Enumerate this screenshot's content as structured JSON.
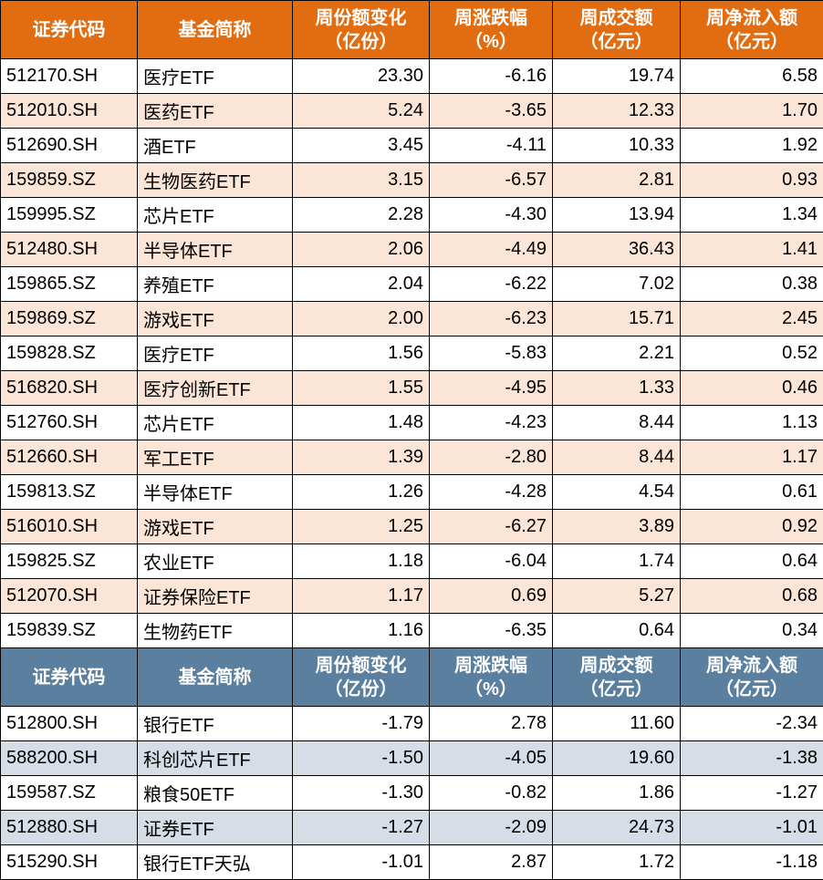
{
  "colors": {
    "header_orange": "#e26c10",
    "header_blue": "#5b7f9e",
    "stripe_orange": "#fbe5d6",
    "stripe_blue": "#d6dde6",
    "border": "#000000",
    "text_dark": "#000000",
    "text_header": "#ffffff"
  },
  "table1": {
    "columns": [
      {
        "key": "code",
        "label": "证券代码",
        "align": "left"
      },
      {
        "key": "name",
        "label": "基金简称",
        "align": "left"
      },
      {
        "key": "share",
        "label": "周份额变化<br>（亿份）",
        "align": "right"
      },
      {
        "key": "pct",
        "label": "周涨跌幅<br>（%）",
        "align": "right"
      },
      {
        "key": "vol",
        "label": "周成交额<br>（亿元）",
        "align": "right"
      },
      {
        "key": "flow",
        "label": "周净流入额<br>（亿元）",
        "align": "right"
      }
    ],
    "rows": [
      {
        "code": "512170.SH",
        "name": "医疗ETF",
        "share": "23.30",
        "pct": "-6.16",
        "vol": "19.74",
        "flow": "6.58"
      },
      {
        "code": "512010.SH",
        "name": "医药ETF",
        "share": "5.24",
        "pct": "-3.65",
        "vol": "12.33",
        "flow": "1.70"
      },
      {
        "code": "512690.SH",
        "name": "酒ETF",
        "share": "3.45",
        "pct": "-4.11",
        "vol": "10.33",
        "flow": "1.92"
      },
      {
        "code": "159859.SZ",
        "name": "生物医药ETF",
        "share": "3.15",
        "pct": "-6.57",
        "vol": "2.81",
        "flow": "0.93"
      },
      {
        "code": "159995.SZ",
        "name": "芯片ETF",
        "share": "2.28",
        "pct": "-4.30",
        "vol": "13.94",
        "flow": "1.34"
      },
      {
        "code": "512480.SH",
        "name": "半导体ETF",
        "share": "2.06",
        "pct": "-4.49",
        "vol": "36.43",
        "flow": "1.41"
      },
      {
        "code": "159865.SZ",
        "name": "养殖ETF",
        "share": "2.04",
        "pct": "-6.22",
        "vol": "7.02",
        "flow": "0.38"
      },
      {
        "code": "159869.SZ",
        "name": "游戏ETF",
        "share": "2.00",
        "pct": "-6.23",
        "vol": "15.71",
        "flow": "2.45"
      },
      {
        "code": "159828.SZ",
        "name": "医疗ETF",
        "share": "1.56",
        "pct": "-5.83",
        "vol": "2.21",
        "flow": "0.52"
      },
      {
        "code": "516820.SH",
        "name": "医疗创新ETF",
        "share": "1.55",
        "pct": "-4.95",
        "vol": "1.33",
        "flow": "0.46"
      },
      {
        "code": "512760.SH",
        "name": "芯片ETF",
        "share": "1.48",
        "pct": "-4.23",
        "vol": "8.44",
        "flow": "1.13"
      },
      {
        "code": "512660.SH",
        "name": "军工ETF",
        "share": "1.39",
        "pct": "-2.80",
        "vol": "8.44",
        "flow": "1.17"
      },
      {
        "code": "159813.SZ",
        "name": "半导体ETF",
        "share": "1.26",
        "pct": "-4.28",
        "vol": "4.54",
        "flow": "0.61"
      },
      {
        "code": "516010.SH",
        "name": "游戏ETF",
        "share": "1.25",
        "pct": "-6.27",
        "vol": "3.89",
        "flow": "0.92"
      },
      {
        "code": "159825.SZ",
        "name": "农业ETF",
        "share": "1.18",
        "pct": "-6.04",
        "vol": "1.74",
        "flow": "0.64"
      },
      {
        "code": "512070.SH",
        "name": "证券保险ETF",
        "share": "1.17",
        "pct": "0.69",
        "vol": "5.27",
        "flow": "0.68"
      },
      {
        "code": "159839.SZ",
        "name": "生物药ETF",
        "share": "1.16",
        "pct": "-6.35",
        "vol": "0.64",
        "flow": "0.34"
      }
    ]
  },
  "table2": {
    "columns": [
      {
        "key": "code",
        "label": "证券代码",
        "align": "left"
      },
      {
        "key": "name",
        "label": "基金简称",
        "align": "left"
      },
      {
        "key": "share",
        "label": "周份额变化<br>（亿份）",
        "align": "right"
      },
      {
        "key": "pct",
        "label": "周涨跌幅<br>（%）",
        "align": "right"
      },
      {
        "key": "vol",
        "label": "周成交额<br>（亿元）",
        "align": "right"
      },
      {
        "key": "flow",
        "label": "周净流入额<br>（亿元）",
        "align": "right"
      }
    ],
    "rows": [
      {
        "code": "512800.SH",
        "name": "银行ETF",
        "share": "-1.79",
        "pct": "2.78",
        "vol": "11.60",
        "flow": "-2.34"
      },
      {
        "code": "588200.SH",
        "name": "科创芯片ETF",
        "share": "-1.50",
        "pct": "-4.05",
        "vol": "19.60",
        "flow": "-1.38"
      },
      {
        "code": "159587.SZ",
        "name": "粮食50ETF",
        "share": "-1.30",
        "pct": "-0.82",
        "vol": "1.86",
        "flow": "-1.27"
      },
      {
        "code": "512880.SH",
        "name": "证券ETF",
        "share": "-1.27",
        "pct": "-2.09",
        "vol": "24.73",
        "flow": "-1.01"
      },
      {
        "code": "515290.SH",
        "name": "银行ETF天弘",
        "share": "-1.01",
        "pct": "2.87",
        "vol": "1.72",
        "flow": "-1.18"
      }
    ]
  }
}
